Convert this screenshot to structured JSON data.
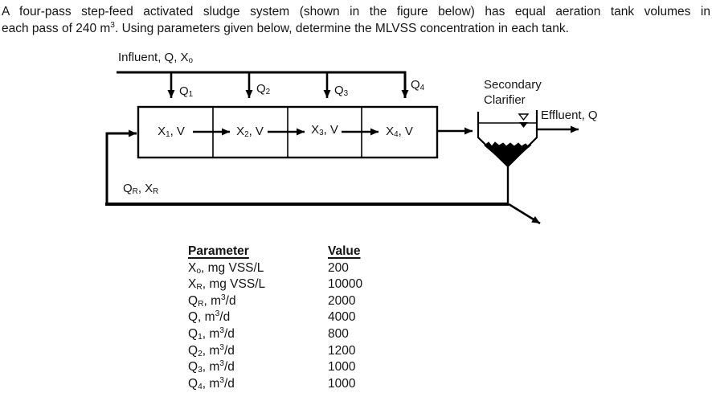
{
  "title": {
    "line1": "A four-pass step-feed activated sludge system (shown in the figure below) has equal aeration tank volumes in",
    "line2": [
      {
        "t": "each pass of 240 m"
      },
      {
        "sup": "3"
      },
      {
        "t": ". Using parameters given below, determine the MLVSS concentration in each tank."
      }
    ]
  },
  "diagram": {
    "influent_label": [
      {
        "t": "Influent, Q, X"
      },
      {
        "sub": "o"
      }
    ],
    "feeds": [
      {
        "label": [
          {
            "t": "Q"
          },
          {
            "sub": "1"
          }
        ]
      },
      {
        "label": [
          {
            "t": "Q"
          },
          {
            "sub": "2"
          }
        ]
      },
      {
        "label": [
          {
            "t": "Q"
          },
          {
            "sub": "3"
          }
        ]
      },
      {
        "label": [
          {
            "t": "Q"
          },
          {
            "sub": "4"
          }
        ]
      }
    ],
    "tanks": [
      {
        "label": [
          {
            "t": "X"
          },
          {
            "sub": "1"
          },
          {
            "t": ", V"
          }
        ]
      },
      {
        "label": [
          {
            "t": "X"
          },
          {
            "sub": "2"
          },
          {
            "t": ", V"
          }
        ]
      },
      {
        "label": [
          {
            "t": "X"
          },
          {
            "sub": "3"
          },
          {
            "t": ", V"
          }
        ]
      },
      {
        "label": [
          {
            "t": "X"
          },
          {
            "sub": "4"
          },
          {
            "t": ", V"
          }
        ]
      }
    ],
    "clarifier_caption_line1": "Secondary",
    "clarifier_caption_line2": "Clarifier",
    "effluent_label": "Effluent, Q",
    "recycle_label": [
      {
        "t": "Q"
      },
      {
        "sub": "R"
      },
      {
        "t": ", X"
      },
      {
        "sub": "R"
      }
    ],
    "colors": {
      "ink": "#000000",
      "paper": "#ffffff",
      "sludge": "#000000"
    }
  },
  "table": {
    "headers": [
      "Parameter",
      "Value"
    ],
    "rows": [
      {
        "param": [
          {
            "t": "X"
          },
          {
            "sub": "o"
          },
          {
            "t": ", mg VSS/L"
          }
        ],
        "value": "200"
      },
      {
        "param": [
          {
            "t": "X"
          },
          {
            "sub": "R"
          },
          {
            "t": ", mg VSS/L"
          }
        ],
        "value": "10000"
      },
      {
        "param": [
          {
            "t": "Q"
          },
          {
            "sub": "R"
          },
          {
            "t": ", m"
          },
          {
            "sup": "3"
          },
          {
            "t": "/d"
          }
        ],
        "value": "2000"
      },
      {
        "param": [
          {
            "t": "Q, m"
          },
          {
            "sup": "3"
          },
          {
            "t": "/d"
          }
        ],
        "value": "4000"
      },
      {
        "param": [
          {
            "t": "Q"
          },
          {
            "sub": "1"
          },
          {
            "t": ", m"
          },
          {
            "sup": "3"
          },
          {
            "t": "/d"
          }
        ],
        "value": "800"
      },
      {
        "param": [
          {
            "t": "Q"
          },
          {
            "sub": "2"
          },
          {
            "t": ", m"
          },
          {
            "sup": "3"
          },
          {
            "t": "/d"
          }
        ],
        "value": "1200"
      },
      {
        "param": [
          {
            "t": "Q"
          },
          {
            "sub": "3"
          },
          {
            "t": ", m"
          },
          {
            "sup": "3"
          },
          {
            "t": "/d"
          }
        ],
        "value": "1000"
      },
      {
        "param": [
          {
            "t": "Q"
          },
          {
            "sub": "4"
          },
          {
            "t": ", m"
          },
          {
            "sup": "3"
          },
          {
            "t": "/d"
          }
        ],
        "value": "1000"
      }
    ]
  }
}
